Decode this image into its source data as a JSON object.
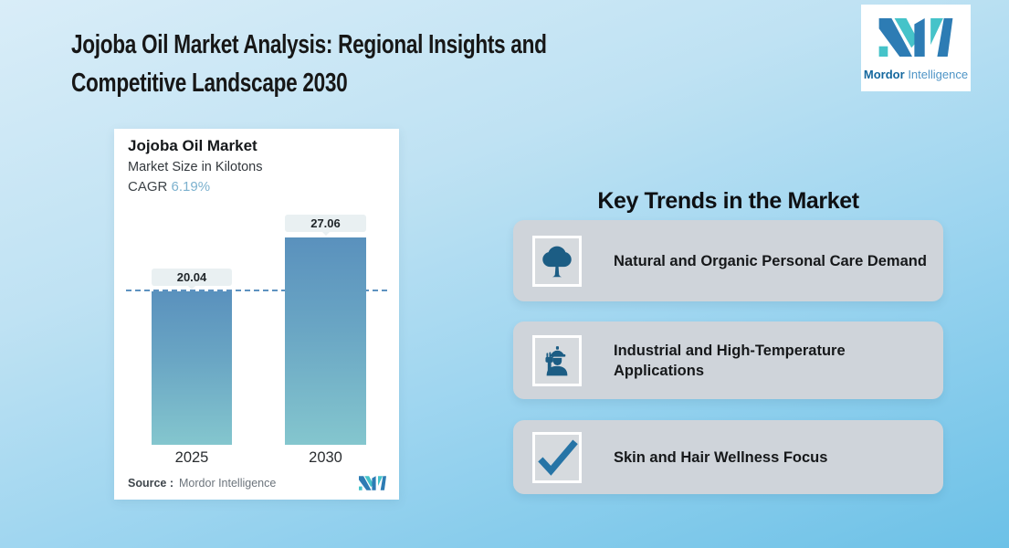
{
  "header": {
    "title_line1": "Jojoba Oil Market Analysis: Regional Insights and",
    "title_line2": "Competitive Landscape 2030"
  },
  "brand": {
    "name_bold": "Mordor",
    "name_regular": "Intelligence"
  },
  "chart_card": {
    "title": "Jojoba Oil Market",
    "subtitle": "Market Size in Kilotons",
    "cagr_label": "CAGR ",
    "cagr_value": "6.19%",
    "source_label": "Source :",
    "source_value": "Mordor Intelligence"
  },
  "chart_data": {
    "type": "bar",
    "title": "Jojoba Oil Market",
    "subtitle": "Market Size in Kilotons",
    "unit": "Kilotons",
    "cagr_percent": 6.19,
    "categories": [
      "2025",
      "2030"
    ],
    "values": [
      20.04,
      27.06
    ],
    "value_labels": [
      "20.04",
      "27.06"
    ],
    "reference_line_at": 20.04,
    "ylim": [
      0,
      29
    ],
    "grid": false,
    "legend": false,
    "bar_color_top": "#5a91bd",
    "bar_color_bottom": "#84c6ce",
    "reference_line_color": "#5d92c0"
  },
  "trends": {
    "heading": "Key Trends in the Market",
    "items": [
      {
        "icon": "tree-icon",
        "label": "Natural and Organic Personal Care Demand"
      },
      {
        "icon": "worker-icon",
        "label": "Industrial and High-Temperature Applications"
      },
      {
        "icon": "checkmark-icon",
        "label": "Skin and Hair Wellness Focus"
      }
    ]
  },
  "colors": {
    "background_top": "#d9edf8",
    "background_bottom": "#6cc1e7",
    "card_white": "#ffffff",
    "trend_card_gray": "#cfd4da",
    "icon_blue": "#1c5d84",
    "check_blue": "#2674a6",
    "logo_teal": "#45c3c9",
    "logo_blue": "#2d7cb4",
    "cagr_value_blue": "#7cb1ce",
    "value_chip_bg": "#e9f0f2"
  }
}
